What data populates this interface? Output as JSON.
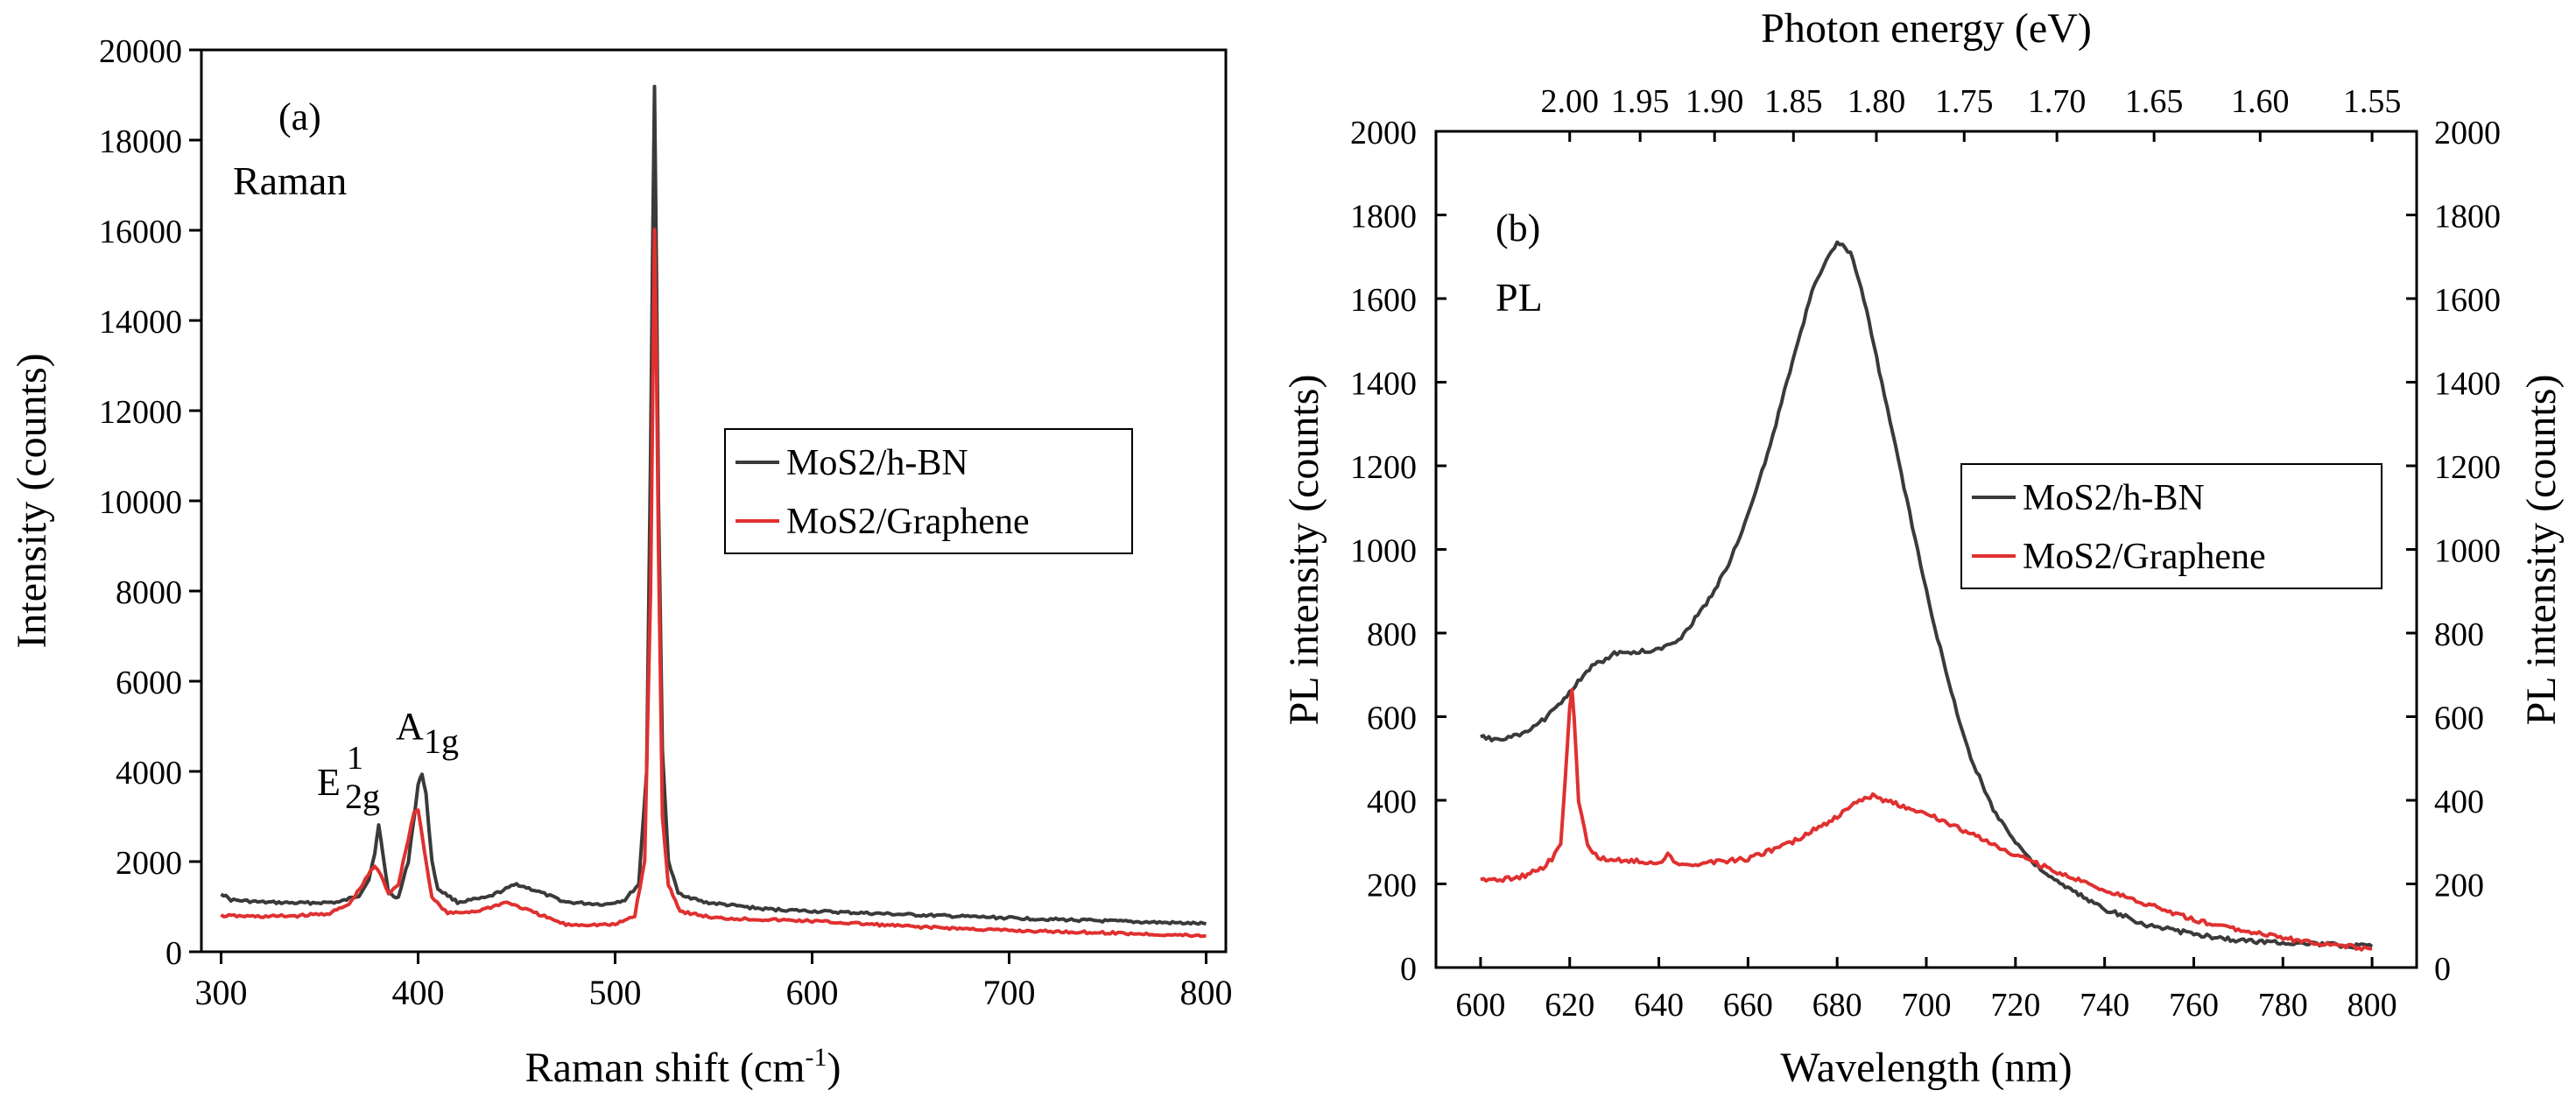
{
  "colors": {
    "black_series": "#3a3a3a",
    "red_series": "#e03030",
    "axis": "#000000",
    "background": "#ffffff"
  },
  "chart_data": [
    {
      "type": "line",
      "panel_label": "(a)",
      "subtitle": "Raman",
      "xlabel": "Raman shift (cm",
      "xlabel_sup": "-1",
      "xlabel_end": ")",
      "ylabel": "Intensity (counts)",
      "xlim": [
        290,
        810
      ],
      "ylim": [
        0,
        20000
      ],
      "xticks": [
        300,
        400,
        500,
        600,
        700,
        800
      ],
      "yticks": [
        0,
        2000,
        4000,
        6000,
        8000,
        10000,
        12000,
        14000,
        16000,
        18000,
        20000
      ],
      "legend_position": "middle-right",
      "annotations": [
        {
          "text": "E",
          "sup": "1",
          "sub": "2g",
          "x": 372,
          "y": 3150
        },
        {
          "text": "A",
          "sub": "1g",
          "x": 396,
          "y": 4000
        }
      ],
      "series": [
        {
          "name": "MoS2/h-BN",
          "color": "#3a3a3a",
          "points": [
            [
              300,
              1300
            ],
            [
              305,
              1150
            ],
            [
              320,
              1100
            ],
            [
              340,
              1080
            ],
            [
              360,
              1100
            ],
            [
              370,
              1250
            ],
            [
              375,
              1600
            ],
            [
              378,
              2200
            ],
            [
              380,
              2800
            ],
            [
              382,
              2200
            ],
            [
              385,
              1300
            ],
            [
              390,
              1200
            ],
            [
              395,
              2000
            ],
            [
              398,
              3000
            ],
            [
              400,
              3700
            ],
            [
              402,
              3950
            ],
            [
              404,
              3500
            ],
            [
              407,
              2000
            ],
            [
              410,
              1400
            ],
            [
              420,
              1100
            ],
            [
              435,
              1200
            ],
            [
              450,
              1500
            ],
            [
              460,
              1350
            ],
            [
              475,
              1100
            ],
            [
              495,
              1050
            ],
            [
              505,
              1150
            ],
            [
              512,
              1500
            ],
            [
              516,
              4000
            ],
            [
              518,
              11000
            ],
            [
              519,
              15500
            ],
            [
              520,
              19200
            ],
            [
              521,
              15000
            ],
            [
              522,
              10000
            ],
            [
              524,
              4500
            ],
            [
              527,
              2000
            ],
            [
              532,
              1300
            ],
            [
              545,
              1100
            ],
            [
              575,
              950
            ],
            [
              600,
              900
            ],
            [
              650,
              820
            ],
            [
              700,
              750
            ],
            [
              750,
              680
            ],
            [
              800,
              620
            ]
          ]
        },
        {
          "name": "MoS2/Graphene",
          "color": "#e03030",
          "points": [
            [
              300,
              800
            ],
            [
              320,
              780
            ],
            [
              340,
              800
            ],
            [
              355,
              850
            ],
            [
              365,
              1050
            ],
            [
              372,
              1500
            ],
            [
              376,
              1800
            ],
            [
              378,
              1900
            ],
            [
              381,
              1700
            ],
            [
              385,
              1300
            ],
            [
              390,
              1500
            ],
            [
              395,
              2500
            ],
            [
              398,
              3100
            ],
            [
              400,
              3150
            ],
            [
              403,
              2300
            ],
            [
              407,
              1200
            ],
            [
              415,
              850
            ],
            [
              430,
              900
            ],
            [
              445,
              1100
            ],
            [
              460,
              850
            ],
            [
              475,
              600
            ],
            [
              500,
              600
            ],
            [
              510,
              800
            ],
            [
              515,
              2000
            ],
            [
              518,
              8000
            ],
            [
              520,
              16000
            ],
            [
              521,
              13000
            ],
            [
              522,
              9000
            ],
            [
              524,
              3000
            ],
            [
              527,
              1500
            ],
            [
              533,
              900
            ],
            [
              550,
              750
            ],
            [
              600,
              680
            ],
            [
              650,
              560
            ],
            [
              700,
              470
            ],
            [
              750,
              420
            ],
            [
              800,
              350
            ]
          ]
        }
      ]
    },
    {
      "type": "line",
      "panel_label": "(b)",
      "subtitle": "PL",
      "xlabel": "Wavelength (nm)",
      "ylabel": "PL intensity (counts)",
      "y2label": "PL intensity (counts)",
      "top_xlabel": "Photon energy (eV)",
      "xlim": [
        590,
        810
      ],
      "ylim": [
        0,
        2000
      ],
      "xticks": [
        600,
        620,
        640,
        660,
        680,
        700,
        720,
        740,
        760,
        780,
        800
      ],
      "yticks": [
        0,
        200,
        400,
        600,
        800,
        1000,
        1200,
        1400,
        1600,
        1800,
        2000
      ],
      "top_xticks": [
        "2.00",
        "1.95",
        "1.90",
        "1.85",
        "1.80",
        "1.75",
        "1.70",
        "1.65",
        "1.60",
        "1.55"
      ],
      "top_xtick_positions_nm": [
        620,
        635.8,
        652.5,
        670.2,
        688.8,
        708.5,
        729.3,
        751.1,
        774.9,
        800.0
      ],
      "legend_position": "middle-right",
      "series": [
        {
          "name": "MoS2/h-BN",
          "color": "#3a3a3a",
          "points": [
            [
              600,
              550
            ],
            [
              605,
              545
            ],
            [
              610,
              560
            ],
            [
              615,
              600
            ],
            [
              620,
              660
            ],
            [
              625,
              720
            ],
            [
              630,
              750
            ],
            [
              635,
              755
            ],
            [
              640,
              760
            ],
            [
              645,
              790
            ],
            [
              650,
              860
            ],
            [
              655,
              950
            ],
            [
              660,
              1080
            ],
            [
              665,
              1250
            ],
            [
              670,
              1450
            ],
            [
              675,
              1640
            ],
            [
              680,
              1735
            ],
            [
              683,
              1710
            ],
            [
              686,
              1600
            ],
            [
              690,
              1400
            ],
            [
              695,
              1150
            ],
            [
              700,
              900
            ],
            [
              705,
              680
            ],
            [
              710,
              500
            ],
            [
              715,
              380
            ],
            [
              720,
              300
            ],
            [
              725,
              240
            ],
            [
              730,
              200
            ],
            [
              740,
              140
            ],
            [
              750,
              100
            ],
            [
              760,
              80
            ],
            [
              770,
              65
            ],
            [
              780,
              60
            ],
            [
              790,
              55
            ],
            [
              800,
              50
            ]
          ]
        },
        {
          "name": "MoS2/Graphene",
          "color": "#e03030",
          "points": [
            [
              600,
              210
            ],
            [
              605,
              210
            ],
            [
              610,
              220
            ],
            [
              614,
              240
            ],
            [
              616,
              260
            ],
            [
              618,
              300
            ],
            [
              619,
              450
            ],
            [
              620,
              620
            ],
            [
              620.5,
              660
            ],
            [
              621,
              600
            ],
            [
              622,
              400
            ],
            [
              624,
              290
            ],
            [
              627,
              260
            ],
            [
              635,
              255
            ],
            [
              640,
              250
            ],
            [
              642,
              270
            ],
            [
              644,
              245
            ],
            [
              650,
              250
            ],
            [
              660,
              260
            ],
            [
              670,
              300
            ],
            [
              680,
              360
            ],
            [
              685,
              400
            ],
            [
              688,
              410
            ],
            [
              692,
              395
            ],
            [
              700,
              370
            ],
            [
              710,
              320
            ],
            [
              720,
              270
            ],
            [
              730,
              225
            ],
            [
              740,
              185
            ],
            [
              750,
              150
            ],
            [
              760,
              115
            ],
            [
              770,
              90
            ],
            [
              780,
              70
            ],
            [
              790,
              55
            ],
            [
              800,
              45
            ]
          ]
        }
      ]
    }
  ]
}
